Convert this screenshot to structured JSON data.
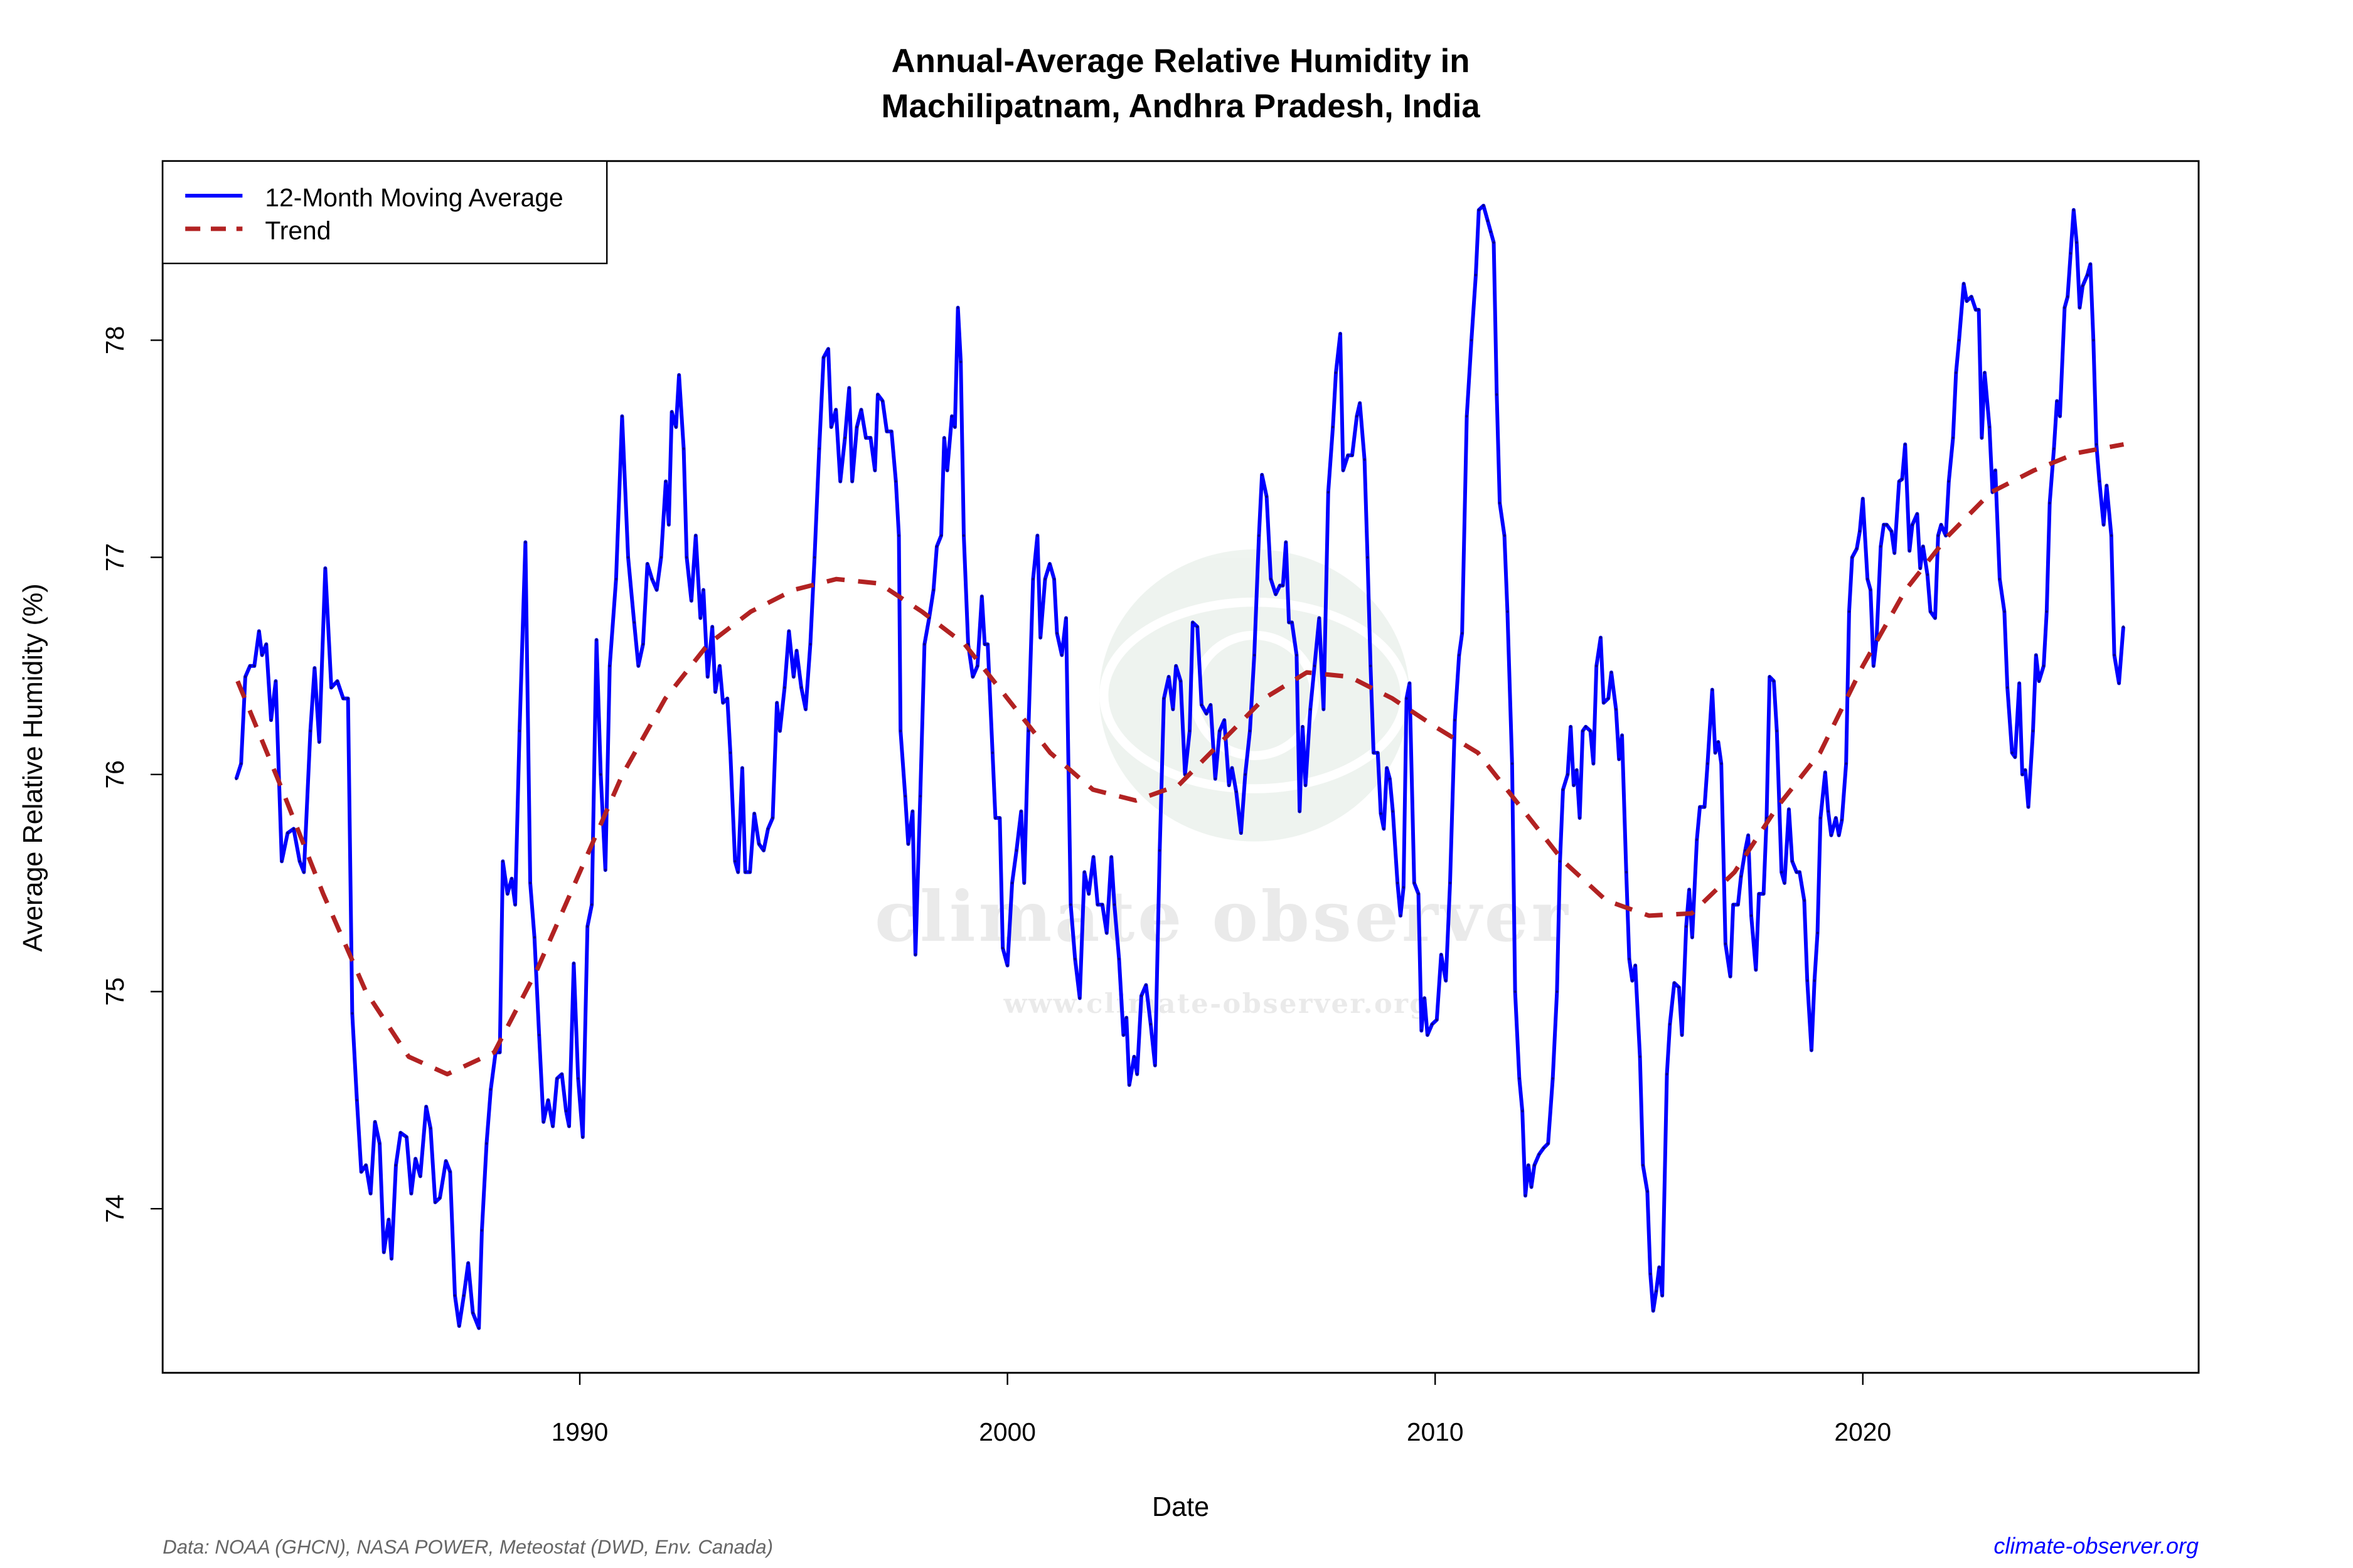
{
  "chart_data": {
    "type": "line",
    "title": "Annual-Average Relative Humidity in",
    "subtitle": "Machilipatnam, Andhra Pradesh, India",
    "xlabel": "Date",
    "ylabel": "Average Relative Humidity (%)",
    "xlim": [
      1980.7,
      2027.3
    ],
    "ylim": [
      73.3,
      78.85
    ],
    "x_ticks": [
      1990,
      2000,
      2010,
      2020
    ],
    "x_tick_labels": [
      "1990",
      "2000",
      "2010",
      "2020"
    ],
    "y_ticks": [
      74,
      75,
      76,
      77,
      78
    ],
    "y_tick_labels": [
      "74",
      "75",
      "76",
      "77",
      "78"
    ],
    "grid": false,
    "legend_position": "top-left",
    "series": [
      {
        "name": "12-Month Moving Average",
        "color": "#0000ff",
        "style": "solid",
        "x": [
          1981.97,
          1982.08,
          1982.18,
          1982.29,
          1982.39,
          1982.5,
          1982.57,
          1982.67,
          1982.78,
          1982.89,
          1983.03,
          1983.17,
          1983.31,
          1983.45,
          1983.55,
          1983.7,
          1983.8,
          1983.91,
          1984.05,
          1984.19,
          1984.33,
          1984.47,
          1984.58,
          1984.68,
          1984.79,
          1984.89,
          1985.0,
          1985.11,
          1985.21,
          1985.32,
          1985.42,
          1985.53,
          1985.6,
          1985.7,
          1985.81,
          1985.95,
          1986.06,
          1986.16,
          1986.27,
          1986.41,
          1986.51,
          1986.62,
          1986.73,
          1986.87,
          1986.97,
          1987.08,
          1987.18,
          1987.29,
          1987.39,
          1987.5,
          1987.64,
          1987.71,
          1987.82,
          1987.92,
          1988.03,
          1988.13,
          1988.2,
          1988.31,
          1988.41,
          1988.49,
          1988.59,
          1988.73,
          1988.84,
          1988.94,
          1989.05,
          1989.15,
          1989.26,
          1989.37,
          1989.47,
          1989.58,
          1989.68,
          1989.75,
          1989.86,
          1989.96,
          1990.07,
          1990.18,
          1990.28,
          1990.39,
          1990.49,
          1990.6,
          1990.7,
          1990.85,
          1990.99,
          1991.13,
          1991.27,
          1991.37,
          1991.48,
          1991.58,
          1991.69,
          1991.8,
          1991.9,
          1992.01,
          1992.08,
          1992.15,
          1992.25,
          1992.32,
          1992.43,
          1992.5,
          1992.61,
          1992.71,
          1992.82,
          1992.89,
          1992.99,
          1993.1,
          1993.17,
          1993.27,
          1993.35,
          1993.45,
          1993.52,
          1993.63,
          1993.7,
          1993.8,
          1993.87,
          1993.98,
          1994.08,
          1994.19,
          1994.3,
          1994.4,
          1994.51,
          1994.61,
          1994.68,
          1994.79,
          1994.89,
          1995.0,
          1995.07,
          1995.18,
          1995.28,
          1995.39,
          1995.49,
          1995.6,
          1995.7,
          1995.81,
          1995.88,
          1995.99,
          1996.09,
          1996.2,
          1996.3,
          1996.37,
          1996.48,
          1996.58,
          1996.69,
          1996.8,
          1996.9,
          1996.97,
          1997.08,
          1997.18,
          1997.29,
          1997.39,
          1997.46,
          1997.5,
          1997.61,
          1997.68,
          1997.78,
          1997.85,
          1997.96,
          1998.06,
          1998.17,
          1998.27,
          1998.35,
          1998.45,
          1998.52,
          1998.59,
          1998.7,
          1998.77,
          1998.84,
          1998.91,
          1998.98,
          1999.08,
          1999.19,
          1999.3,
          1999.4,
          1999.47,
          1999.54,
          1999.65,
          1999.72,
          1999.82,
          1999.89,
          2000.0,
          2000.11,
          2000.21,
          2000.32,
          2000.39,
          2000.49,
          2000.6,
          2000.7,
          2000.77,
          2000.88,
          2000.99,
          2001.09,
          2001.16,
          2001.27,
          2001.37,
          2001.48,
          2001.58,
          2001.69,
          2001.8,
          2001.9,
          2002.01,
          2002.11,
          2002.22,
          2002.32,
          2002.43,
          2002.5,
          2002.61,
          2002.71,
          2002.78,
          2002.85,
          2002.96,
          2003.03,
          2003.13,
          2003.24,
          2003.35,
          2003.45,
          2003.56,
          2003.66,
          2003.77,
          2003.87,
          2003.94,
          2004.05,
          2004.15,
          2004.26,
          2004.33,
          2004.44,
          2004.54,
          2004.65,
          2004.75,
          2004.86,
          2004.96,
          2005.07,
          2005.18,
          2005.25,
          2005.35,
          2005.46,
          2005.56,
          2005.67,
          2005.77,
          2005.88,
          2005.95,
          2006.06,
          2006.16,
          2006.27,
          2006.37,
          2006.44,
          2006.51,
          2006.58,
          2006.65,
          2006.76,
          2006.83,
          2006.9,
          2006.97,
          2007.08,
          2007.18,
          2007.29,
          2007.39,
          2007.5,
          2007.61,
          2007.68,
          2007.78,
          2007.85,
          2007.96,
          2008.06,
          2008.17,
          2008.24,
          2008.35,
          2008.42,
          2008.49,
          2008.56,
          2008.66,
          2008.73,
          2008.8,
          2008.87,
          2008.94,
          2009.01,
          2009.12,
          2009.19,
          2009.26,
          2009.33,
          2009.4,
          2009.51,
          2009.61,
          2009.68,
          2009.75,
          2009.82,
          2009.93,
          2010.04,
          2010.14,
          2010.25,
          2010.35,
          2010.46,
          2010.56,
          2010.63,
          2010.74,
          2010.85,
          2010.95,
          2011.02,
          2011.13,
          2011.23,
          2011.3,
          2011.37,
          2011.44,
          2011.51,
          2011.62,
          2011.69,
          2011.8,
          2011.87,
          2011.97,
          2012.04,
          2012.11,
          2012.18,
          2012.25,
          2012.32,
          2012.43,
          2012.54,
          2012.64,
          2012.75,
          2012.85,
          2012.92,
          2012.99,
          2013.1,
          2013.17,
          2013.24,
          2013.31,
          2013.38,
          2013.45,
          2013.52,
          2013.63,
          2013.7,
          2013.77,
          2013.87,
          2013.94,
          2014.05,
          2014.12,
          2014.23,
          2014.3,
          2014.37,
          2014.47,
          2014.54,
          2014.61,
          2014.68,
          2014.79,
          2014.86,
          2014.96,
          2015.03,
          2015.1,
          2015.17,
          2015.24,
          2015.31,
          2015.42,
          2015.49,
          2015.59,
          2015.7,
          2015.77,
          2015.87,
          2015.94,
          2016.01,
          2016.12,
          2016.19,
          2016.3,
          2016.37,
          2016.48,
          2016.55,
          2016.62,
          2016.69,
          2016.79,
          2016.9,
          2016.97,
          2017.08,
          2017.15,
          2017.25,
          2017.32,
          2017.39,
          2017.5,
          2017.57,
          2017.68,
          2017.75,
          2017.82,
          2017.92,
          2017.99,
          2018.1,
          2018.17,
          2018.27,
          2018.35,
          2018.45,
          2018.52,
          2018.63,
          2018.7,
          2018.8,
          2018.87,
          2018.94,
          2019.01,
          2019.12,
          2019.19,
          2019.26,
          2019.37,
          2019.44,
          2019.51,
          2019.61,
          2019.68,
          2019.75,
          2019.86,
          2019.93,
          2020.0,
          2020.11,
          2020.18,
          2020.25,
          2020.32,
          2020.42,
          2020.49,
          2020.56,
          2020.67,
          2020.74,
          2020.85,
          2020.92,
          2020.99,
          2021.09,
          2021.16,
          2021.27,
          2021.34,
          2021.41,
          2021.51,
          2021.58,
          2021.69,
          2021.76,
          2021.83,
          2021.94,
          2022.01,
          2022.11,
          2022.18,
          2022.25,
          2022.36,
          2022.43,
          2022.54,
          2022.64,
          2022.71,
          2022.78,
          2022.85,
          2022.96,
          2023.03,
          2023.1,
          2023.2,
          2023.31,
          2023.38,
          2023.49,
          2023.56,
          2023.66,
          2023.73,
          2023.8,
          2023.87,
          2023.98,
          2024.05,
          2024.12,
          2024.23,
          2024.3,
          2024.37,
          2024.47,
          2024.54,
          2024.61,
          2024.72,
          2024.79,
          2024.86,
          2024.93,
          2025.0,
          2025.07,
          2025.14,
          2025.25,
          2025.32,
          2025.39,
          2025.46,
          2025.53,
          2025.63,
          2025.7,
          2025.81,
          2025.88,
          2025.99,
          2026.09
        ],
        "values": [
          75.98,
          76.05,
          76.45,
          76.5,
          76.5,
          76.66,
          76.55,
          76.6,
          76.25,
          76.43,
          75.6,
          75.73,
          75.75,
          75.6,
          75.55,
          76.2,
          76.49,
          76.15,
          76.95,
          76.4,
          76.43,
          76.35,
          76.35,
          74.9,
          74.5,
          74.17,
          74.2,
          74.07,
          74.4,
          74.3,
          73.8,
          73.95,
          73.77,
          74.2,
          74.35,
          74.33,
          74.07,
          74.23,
          74.15,
          74.47,
          74.37,
          74.03,
          74.05,
          74.22,
          74.17,
          73.6,
          73.46,
          73.6,
          73.75,
          73.52,
          73.45,
          73.9,
          74.3,
          74.55,
          74.72,
          74.72,
          75.6,
          75.45,
          75.52,
          75.4,
          76.2,
          77.07,
          75.5,
          75.25,
          74.8,
          74.4,
          74.5,
          74.38,
          74.6,
          74.62,
          74.45,
          74.38,
          75.13,
          74.6,
          74.33,
          75.3,
          75.4,
          76.62,
          76.0,
          75.56,
          76.5,
          76.9,
          77.65,
          77.0,
          76.7,
          76.5,
          76.6,
          76.97,
          76.9,
          76.85,
          77.0,
          77.35,
          77.15,
          77.67,
          77.6,
          77.84,
          77.5,
          77.0,
          76.8,
          77.1,
          76.72,
          76.85,
          76.45,
          76.68,
          76.38,
          76.5,
          76.33,
          76.35,
          76.1,
          75.6,
          75.55,
          76.03,
          75.55,
          75.55,
          75.82,
          75.68,
          75.65,
          75.75,
          75.8,
          76.33,
          76.2,
          76.4,
          76.66,
          76.45,
          76.57,
          76.4,
          76.3,
          76.6,
          77.0,
          77.5,
          77.92,
          77.96,
          77.6,
          77.68,
          77.35,
          77.55,
          77.78,
          77.35,
          77.6,
          77.68,
          77.55,
          77.55,
          77.4,
          77.75,
          77.72,
          77.58,
          77.58,
          77.35,
          77.1,
          76.2,
          75.9,
          75.68,
          75.83,
          75.17,
          75.9,
          76.6,
          76.72,
          76.85,
          77.05,
          77.1,
          77.55,
          77.4,
          77.65,
          77.6,
          78.15,
          77.9,
          77.1,
          76.6,
          76.45,
          76.5,
          76.82,
          76.6,
          76.6,
          76.1,
          75.8,
          75.8,
          75.2,
          75.12,
          75.5,
          75.65,
          75.83,
          75.5,
          76.2,
          76.9,
          77.1,
          76.63,
          76.9,
          76.97,
          76.9,
          76.65,
          76.55,
          76.72,
          75.4,
          75.15,
          74.97,
          75.55,
          75.45,
          75.62,
          75.4,
          75.4,
          75.27,
          75.62,
          75.4,
          75.15,
          74.8,
          74.88,
          74.57,
          74.7,
          74.62,
          74.98,
          75.03,
          74.85,
          74.66,
          75.65,
          76.35,
          76.45,
          76.3,
          76.5,
          76.43,
          76.0,
          76.2,
          76.7,
          76.68,
          76.32,
          76.28,
          76.32,
          75.98,
          76.2,
          76.25,
          75.95,
          76.03,
          75.92,
          75.73,
          76.0,
          76.2,
          76.55,
          77.1,
          77.38,
          77.28,
          76.9,
          76.83,
          76.87,
          76.87,
          77.07,
          76.7,
          76.7,
          76.55,
          75.83,
          76.22,
          75.95,
          76.3,
          76.5,
          76.72,
          76.3,
          77.3,
          77.6,
          77.85,
          78.03,
          77.4,
          77.47,
          77.47,
          77.65,
          77.71,
          77.45,
          77.0,
          76.5,
          76.1,
          76.1,
          75.82,
          75.75,
          76.03,
          75.98,
          75.83,
          75.5,
          75.35,
          75.48,
          76.35,
          76.42,
          75.5,
          75.45,
          74.82,
          74.97,
          74.8,
          74.85,
          74.87,
          75.17,
          75.05,
          75.5,
          76.25,
          76.55,
          76.65,
          77.65,
          78.0,
          78.3,
          78.6,
          78.62,
          78.55,
          78.5,
          78.45,
          77.75,
          77.25,
          77.1,
          76.75,
          76.05,
          75.0,
          74.6,
          74.45,
          74.06,
          74.2,
          74.1,
          74.2,
          74.25,
          74.28,
          74.3,
          74.6,
          75.0,
          75.6,
          75.93,
          76.0,
          76.22,
          75.95,
          76.02,
          75.8,
          76.2,
          76.22,
          76.2,
          76.05,
          76.5,
          76.63,
          76.33,
          76.35,
          76.47,
          76.3,
          76.07,
          76.18,
          75.55,
          75.15,
          75.05,
          75.12,
          74.7,
          74.2,
          74.08,
          73.7,
          73.53,
          73.62,
          73.73,
          73.6,
          74.62,
          74.85,
          75.04,
          75.02,
          74.8,
          75.3,
          75.47,
          75.25,
          75.7,
          75.85,
          75.85,
          76.05,
          76.39,
          76.1,
          76.15,
          76.05,
          75.22,
          75.07,
          75.4,
          75.4,
          75.53,
          75.65,
          75.72,
          75.35,
          75.1,
          75.45,
          75.45,
          75.8,
          76.45,
          76.43,
          76.2,
          75.55,
          75.5,
          75.84,
          75.6,
          75.55,
          75.55,
          75.42,
          75.05,
          74.73,
          75.05,
          75.27,
          75.8,
          76.01,
          75.83,
          75.72,
          75.8,
          75.72,
          75.79,
          76.05,
          76.75,
          77.0,
          77.04,
          77.12,
          77.27,
          76.9,
          76.85,
          76.5,
          76.62,
          77.05,
          77.15,
          77.15,
          77.12,
          77.02,
          77.35,
          77.36,
          77.52,
          77.03,
          77.15,
          77.2,
          76.95,
          77.05,
          76.92,
          76.75,
          76.72,
          77.1,
          77.15,
          77.1,
          77.35,
          77.55,
          77.85,
          78.0,
          78.26,
          78.18,
          78.2,
          78.14,
          78.14,
          77.55,
          77.85,
          77.6,
          77.3,
          77.4,
          76.9,
          76.75,
          76.4,
          76.1,
          76.08,
          76.42,
          76.0,
          76.02,
          75.85,
          76.2,
          76.55,
          76.43,
          76.5,
          76.75,
          77.25,
          77.5,
          77.72,
          77.65,
          78.15,
          78.2,
          78.4,
          78.6,
          78.45,
          78.15,
          78.25,
          78.3,
          78.35,
          78.0,
          77.52,
          77.35,
          77.15,
          77.33,
          77.1,
          76.55,
          76.42,
          76.68
        ]
      },
      {
        "name": "Trend",
        "color": "#b22222",
        "style": "dashed",
        "x": [
          1982.0,
          1983,
          1984,
          1985,
          1986,
          1986.9,
          1988,
          1989,
          1990,
          1991,
          1992,
          1993,
          1994,
          1995,
          1996,
          1997,
          1998,
          1999,
          2000,
          2001,
          2002,
          2003,
          2004,
          2005,
          2006,
          2007,
          2008,
          2009,
          2010,
          2011,
          2012,
          2013,
          2014,
          2015,
          2016,
          2017,
          2018,
          2019,
          2020,
          2021,
          2022,
          2023,
          2024,
          2025,
          2026.1
        ],
        "values": [
          76.43,
          75.95,
          75.45,
          75.0,
          74.7,
          74.62,
          74.72,
          75.1,
          75.55,
          76.0,
          76.35,
          76.6,
          76.75,
          76.85,
          76.9,
          76.88,
          76.75,
          76.6,
          76.35,
          76.1,
          75.93,
          75.88,
          75.95,
          76.15,
          76.35,
          76.47,
          76.45,
          76.35,
          76.22,
          76.1,
          75.85,
          75.6,
          75.42,
          75.35,
          75.36,
          75.55,
          75.85,
          76.1,
          76.5,
          76.85,
          77.1,
          77.3,
          77.4,
          77.48,
          77.52
        ]
      }
    ]
  },
  "watermark": {
    "name": "climate observer",
    "url": "www.climate-observer.org"
  },
  "footer": {
    "source": "Data: NOAA (GHCN), NASA POWER, Meteostat (DWD, Env. Canada)",
    "site": "climate-observer.org",
    "site_color": "#0000ff"
  }
}
